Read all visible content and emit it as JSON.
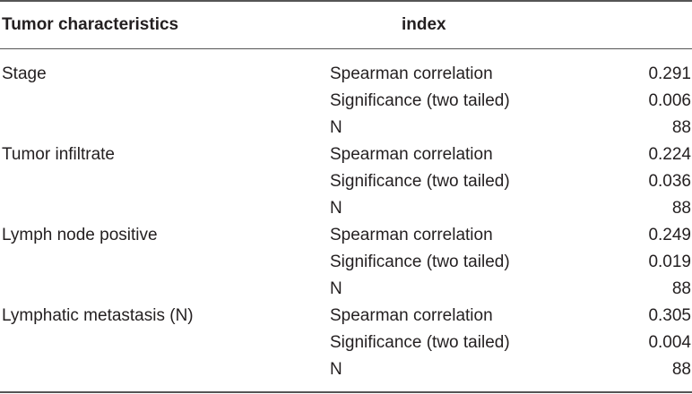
{
  "table": {
    "headers": {
      "characteristic": "Tumor characteristics",
      "index": "index"
    },
    "groups": [
      {
        "characteristic": "Stage",
        "rows": [
          {
            "index": "Spearman correlation",
            "value": "0.291"
          },
          {
            "index": "Significance (two tailed)",
            "value": "0.006"
          },
          {
            "index": "N",
            "value": "88"
          }
        ]
      },
      {
        "characteristic": "Tumor infiltrate",
        "rows": [
          {
            "index": "Spearman correlation",
            "value": "0.224"
          },
          {
            "index": "Significance (two tailed)",
            "value": "0.036"
          },
          {
            "index": "N",
            "value": "88"
          }
        ]
      },
      {
        "characteristic": "Lymph node positive",
        "rows": [
          {
            "index": "Spearman correlation",
            "value": "0.249"
          },
          {
            "index": "Significance (two tailed)",
            "value": "0.019"
          },
          {
            "index": "N",
            "value": "88"
          }
        ]
      },
      {
        "characteristic": "Lymphatic metastasis (N)",
        "rows": [
          {
            "index": "Spearman correlation",
            "value": "0.305"
          },
          {
            "index": "Significance (two tailed)",
            "value": "0.004"
          },
          {
            "index": "N",
            "value": "88"
          }
        ]
      }
    ]
  }
}
